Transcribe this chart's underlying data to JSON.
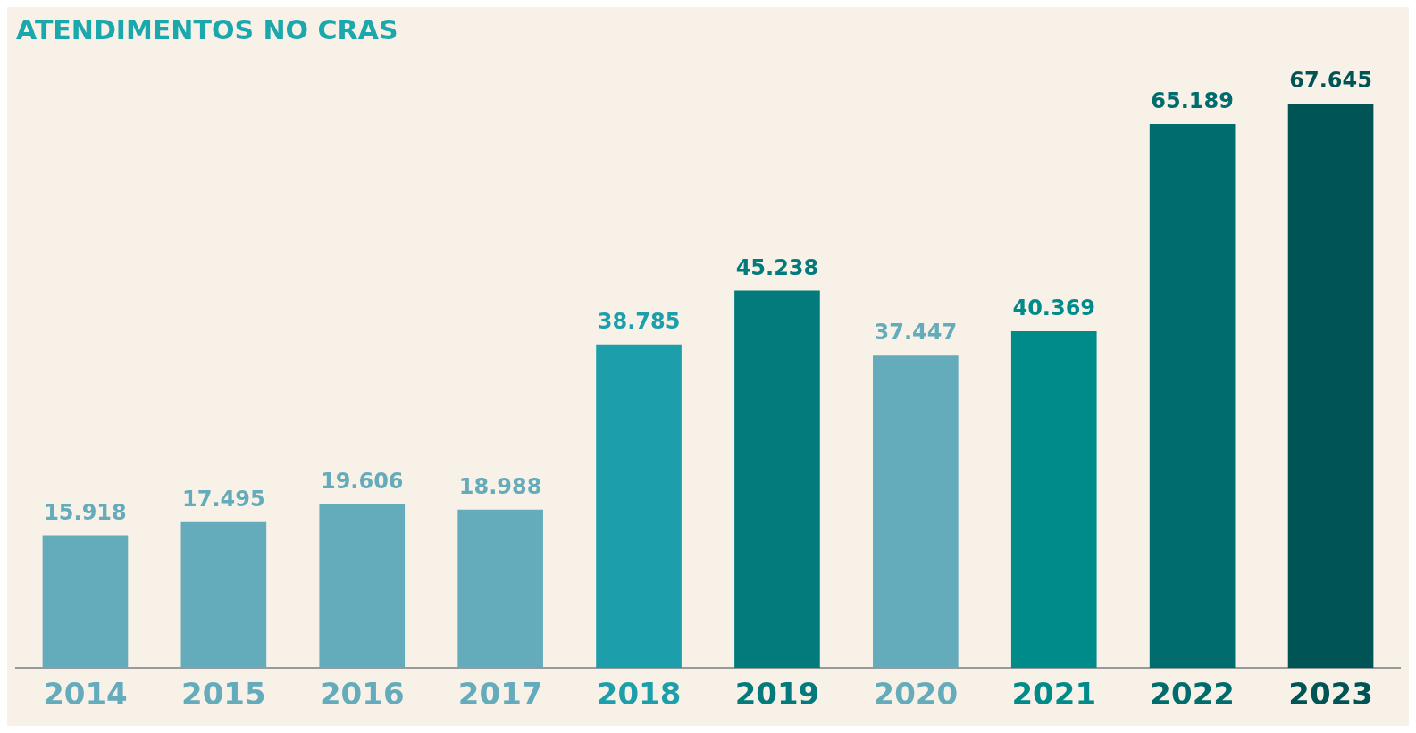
{
  "chart_data": {
    "type": "bar",
    "title": "ATENDIMENTOS NO CRAS",
    "categories": [
      "2014",
      "2015",
      "2016",
      "2017",
      "2018",
      "2019",
      "2020",
      "2021",
      "2022",
      "2023"
    ],
    "values": [
      15918,
      17495,
      19606,
      18988,
      38785,
      45238,
      37447,
      40369,
      65189,
      67645
    ],
    "value_labels": [
      "15.918",
      "17.495",
      "19.606",
      "18.988",
      "38.785",
      "45.238",
      "37.447",
      "40.369",
      "65.189",
      "67.645"
    ],
    "colors": [
      "#64abbb",
      "#64abbb",
      "#64abbb",
      "#64abbb",
      "#1c9faa",
      "#037b7c",
      "#64abbb",
      "#008b8b",
      "#006c6d",
      "#005455"
    ],
    "grid": false,
    "legend": false
  }
}
